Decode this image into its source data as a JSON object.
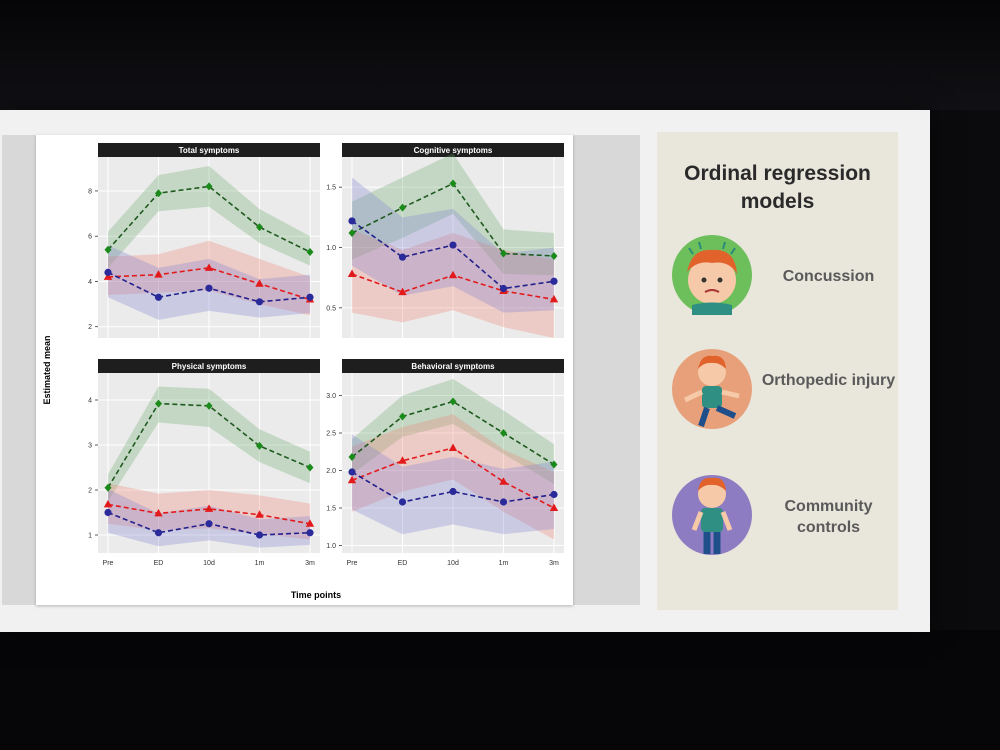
{
  "slide": {
    "title": "Ordinal regression models",
    "groups": [
      {
        "label": "Concussion",
        "icon": "concussion-child-icon",
        "color": "#6cbf5a"
      },
      {
        "label": "Orthopedic injury",
        "icon": "orthopedic-child-icon",
        "color": "#e8a07a"
      },
      {
        "label": "Community controls",
        "icon": "community-child-icon",
        "color": "#8e7cc3"
      }
    ]
  },
  "figure": {
    "y_axis_label": "Estimated mean",
    "x_axis_label": "Time points"
  },
  "colors": {
    "concussion": "#1f5a1f",
    "orthopedic": "#e31a1c",
    "control": "#22208c"
  },
  "chart_data": [
    {
      "type": "line",
      "title": "Total symptoms",
      "categories": [
        "Pre",
        "ED",
        "10d",
        "1m",
        "3m"
      ],
      "ylim": [
        1.5,
        9.5
      ],
      "yticks": [
        2,
        4,
        6,
        8
      ],
      "ytick_labels": [
        "2",
        "4",
        "6",
        "8"
      ],
      "series": [
        {
          "name": "Concussion",
          "values": [
            5.4,
            7.9,
            8.2,
            6.4,
            5.3
          ],
          "lower": [
            4.6,
            7.1,
            7.3,
            5.7,
            4.7
          ],
          "upper": [
            6.2,
            8.7,
            9.1,
            7.2,
            6.0
          ]
        },
        {
          "name": "Orthopedic injury",
          "values": [
            4.2,
            4.3,
            4.6,
            3.9,
            3.2
          ],
          "lower": [
            3.4,
            3.5,
            3.6,
            3.0,
            2.5
          ],
          "upper": [
            5.1,
            5.2,
            5.8,
            5.0,
            4.2
          ]
        },
        {
          "name": "Community controls",
          "values": [
            4.4,
            3.3,
            3.7,
            3.1,
            3.3
          ],
          "lower": [
            3.3,
            2.3,
            2.7,
            2.4,
            2.6
          ],
          "upper": [
            5.6,
            4.6,
            5.0,
            4.1,
            4.3
          ]
        }
      ]
    },
    {
      "type": "line",
      "title": "Cognitive symptoms",
      "categories": [
        "Pre",
        "ED",
        "10d",
        "1m",
        "3m"
      ],
      "ylim": [
        0.25,
        1.75
      ],
      "yticks": [
        0.5,
        1.0,
        1.5
      ],
      "ytick_labels": [
        "0.5",
        "1.0",
        "1.5"
      ],
      "series": [
        {
          "name": "Concussion",
          "values": [
            1.12,
            1.33,
            1.53,
            0.95,
            0.93
          ],
          "lower": [
            0.9,
            1.08,
            1.28,
            0.78,
            0.77
          ],
          "upper": [
            1.38,
            1.58,
            1.78,
            1.15,
            1.12
          ]
        },
        {
          "name": "Orthopedic injury",
          "values": [
            0.78,
            0.63,
            0.77,
            0.64,
            0.57
          ],
          "lower": [
            0.46,
            0.38,
            0.48,
            0.34,
            0.25
          ],
          "upper": [
            1.15,
            0.98,
            1.12,
            0.98,
            0.9
          ]
        },
        {
          "name": "Community controls",
          "values": [
            1.22,
            0.92,
            1.02,
            0.66,
            0.72
          ],
          "lower": [
            0.85,
            0.6,
            0.68,
            0.46,
            0.48
          ],
          "upper": [
            1.58,
            1.25,
            1.32,
            0.95,
            1.0
          ]
        }
      ]
    },
    {
      "type": "line",
      "title": "Physical symptoms",
      "categories": [
        "Pre",
        "ED",
        "10d",
        "1m",
        "3m"
      ],
      "ylim": [
        0.6,
        4.6
      ],
      "yticks": [
        1,
        2,
        3,
        4
      ],
      "ytick_labels": [
        "1",
        "2",
        "3",
        "4"
      ],
      "series": [
        {
          "name": "Concussion",
          "values": [
            2.05,
            3.92,
            3.87,
            2.98,
            2.5
          ],
          "lower": [
            1.75,
            3.5,
            3.4,
            2.62,
            2.15
          ],
          "upper": [
            2.35,
            4.3,
            4.25,
            3.35,
            2.85
          ]
        },
        {
          "name": "Orthopedic injury",
          "values": [
            1.68,
            1.48,
            1.58,
            1.45,
            1.25
          ],
          "lower": [
            1.25,
            1.1,
            1.15,
            1.02,
            0.9
          ],
          "upper": [
            2.15,
            1.92,
            2.0,
            1.88,
            1.7
          ]
        },
        {
          "name": "Community controls",
          "values": [
            1.5,
            1.05,
            1.25,
            1.0,
            1.05
          ],
          "lower": [
            1.05,
            0.75,
            0.88,
            0.72,
            0.78
          ],
          "upper": [
            2.02,
            1.48,
            1.65,
            1.35,
            1.42
          ]
        }
      ]
    },
    {
      "type": "line",
      "title": "Behavioral symptoms",
      "categories": [
        "Pre",
        "ED",
        "10d",
        "1m",
        "3m"
      ],
      "ylim": [
        0.9,
        3.3
      ],
      "yticks": [
        1.0,
        1.5,
        2.0,
        2.5,
        3.0
      ],
      "ytick_labels": [
        "1.0",
        "1.5",
        "2.0",
        "2.5",
        "3.0"
      ],
      "series": [
        {
          "name": "Concussion",
          "values": [
            2.18,
            2.72,
            2.92,
            2.5,
            2.08
          ],
          "lower": [
            1.95,
            2.45,
            2.62,
            2.22,
            1.82
          ],
          "upper": [
            2.42,
            3.0,
            3.22,
            2.8,
            2.35
          ]
        },
        {
          "name": "Orthopedic injury",
          "values": [
            1.87,
            2.13,
            2.3,
            1.85,
            1.5
          ],
          "lower": [
            1.45,
            1.72,
            1.88,
            1.45,
            1.08
          ],
          "upper": [
            2.32,
            2.58,
            2.75,
            2.28,
            1.98
          ]
        },
        {
          "name": "Community controls",
          "values": [
            1.98,
            1.58,
            1.72,
            1.58,
            1.68
          ],
          "lower": [
            1.48,
            1.15,
            1.28,
            1.15,
            1.22
          ],
          "upper": [
            2.48,
            2.05,
            2.18,
            2.02,
            2.12
          ]
        }
      ]
    }
  ]
}
